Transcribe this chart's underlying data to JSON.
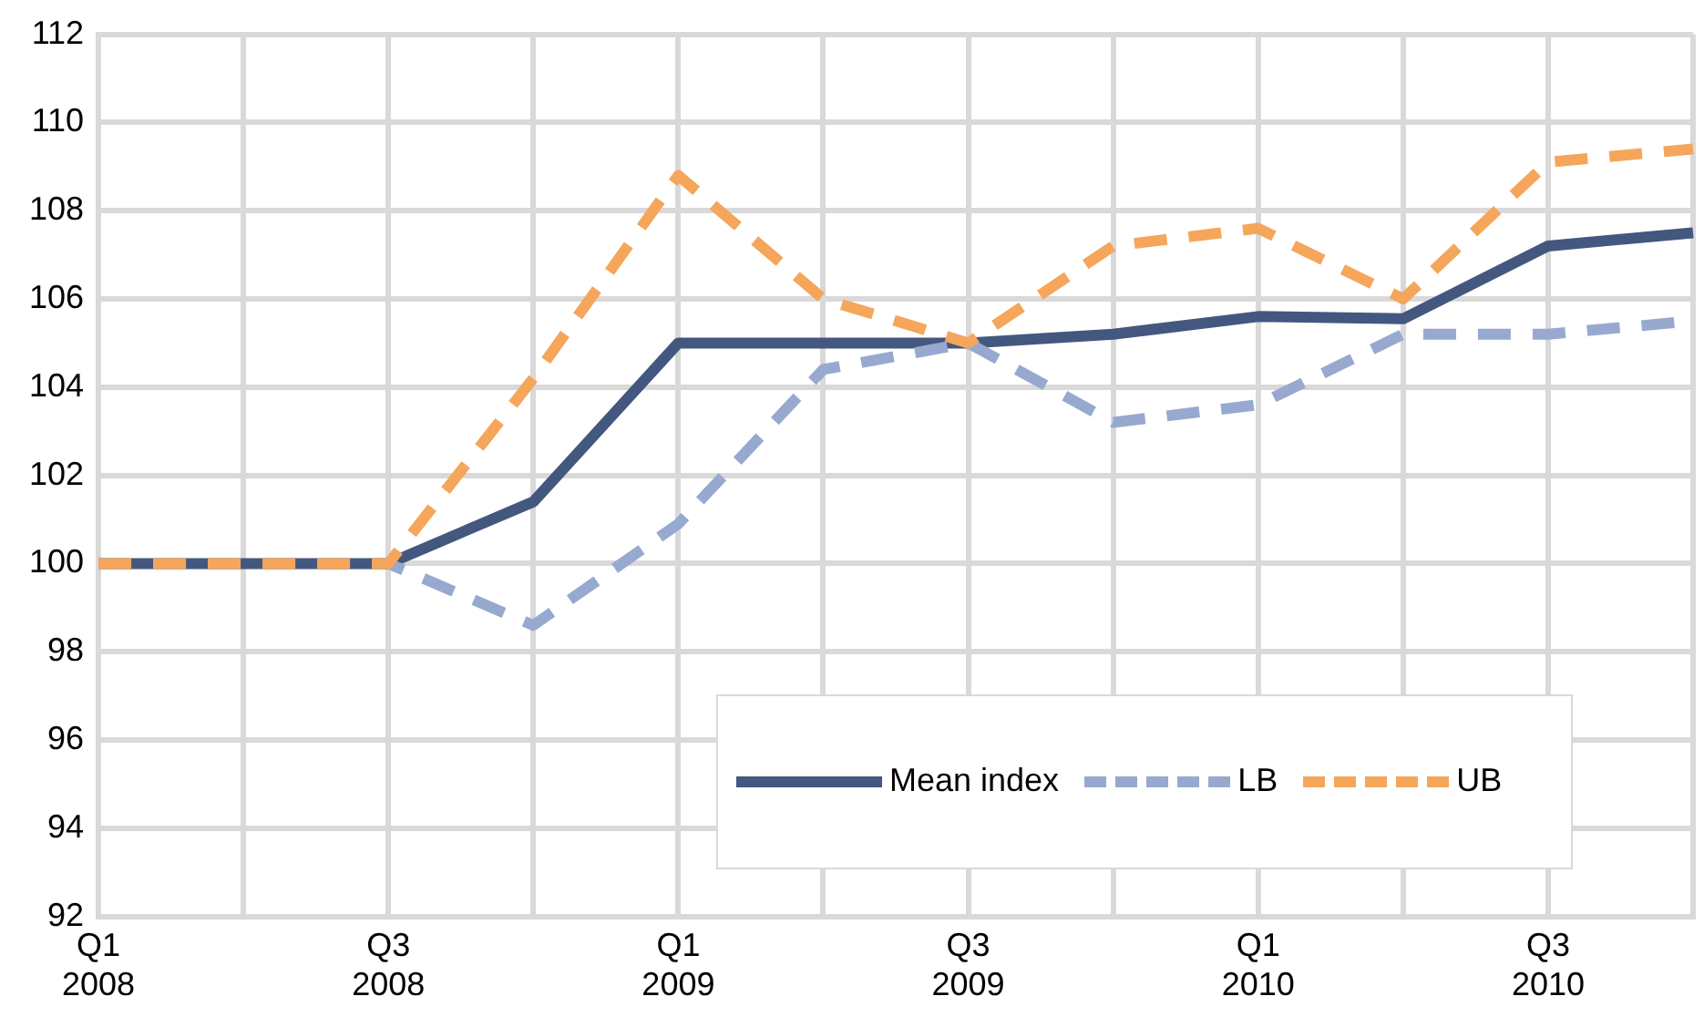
{
  "chart_data": {
    "type": "line",
    "categories": [
      "Q1 2008",
      null,
      "Q3 2008",
      null,
      "Q1 2009",
      null,
      "Q3 2009",
      null,
      "Q1 2010",
      null,
      "Q3 2010",
      null
    ],
    "series": [
      {
        "name": "Mean index",
        "color": "#44577f",
        "line_style": "solid",
        "values": [
          100,
          100,
          100,
          101.4,
          105,
          105,
          105,
          105.2,
          105.6,
          105.55,
          107.2,
          107.5
        ]
      },
      {
        "name": "LB",
        "color": "#97a9cf",
        "line_style": "dashed",
        "values": [
          100,
          100,
          100,
          98.6,
          100.9,
          104.4,
          105,
          103.2,
          103.6,
          105.2,
          105.2,
          105.5
        ]
      },
      {
        "name": "UB",
        "color": "#f5a65b",
        "line_style": "dashed",
        "values": [
          100,
          100,
          100,
          104.2,
          108.8,
          106,
          105,
          107.2,
          107.6,
          106,
          109.1,
          109.4
        ]
      }
    ],
    "ylim": [
      92,
      112
    ],
    "yticks": [
      92,
      94,
      96,
      98,
      100,
      102,
      104,
      106,
      108,
      110,
      112
    ],
    "grid": true,
    "legend": "bottom right",
    "marker": "none"
  }
}
